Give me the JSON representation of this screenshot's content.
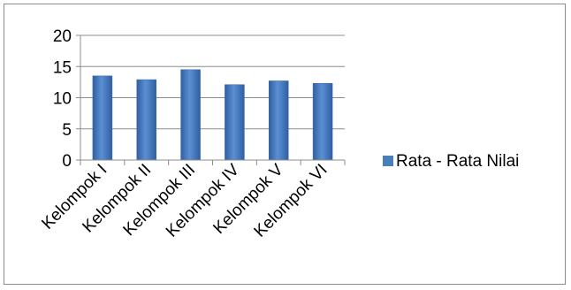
{
  "chart_data": {
    "type": "bar",
    "categories": [
      "Kelompok I",
      "Kelompok II",
      "Kelompok III",
      "Kelompok IV",
      "Kelompok V",
      "Kelompok VI"
    ],
    "series": [
      {
        "name": "Rata - Rata Nilai",
        "values": [
          13.5,
          12.9,
          14.5,
          12.1,
          12.7,
          12.3
        ],
        "color": "#4a7ebb"
      }
    ],
    "ylim": [
      0,
      20
    ],
    "yticks": [
      0,
      5,
      10,
      15,
      20
    ],
    "grid": true,
    "legend_position": "right"
  }
}
